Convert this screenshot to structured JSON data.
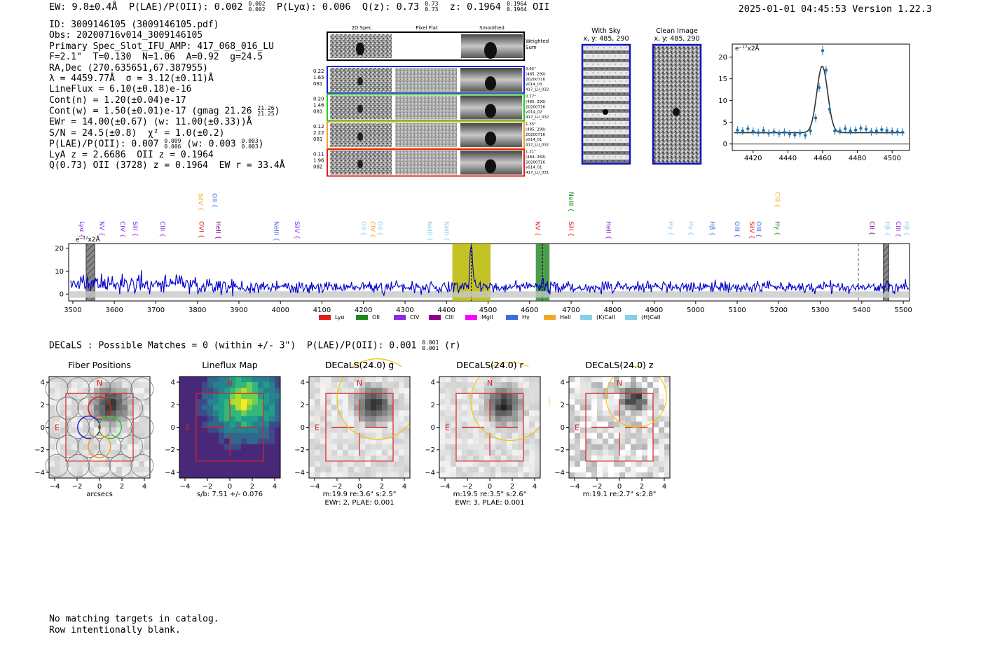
{
  "header": {
    "ew": "EW: 9.8±0.4Å",
    "plae_label": "P(LAE)/P(OII): 0.002",
    "plae_hi": "0.002",
    "plae_lo": "0.002",
    "plya": "P(Lyα): 0.006",
    "qz_label": "Q(z): 0.73",
    "qz_hi": "0.73",
    "qz_lo": "0.73",
    "z_label": "z: 0.1964",
    "z_hi": "0.1964",
    "z_lo": "0.1964",
    "z_line": "OII",
    "datetime": "2025-01-01 04:45:53",
    "version": "Version 1.22.3"
  },
  "info": {
    "id": "ID: 3009146105 (3009146105.pdf)",
    "obs": "Obs: 20200716v014_3009146105",
    "slot": "Primary Spec_Slot_IFU_AMP: 417_068_016_LU",
    "params": "F=2.1\"  T=0.130  N=1.06  A=0.92  g=24.5",
    "radec": "RA,Dec (270.635651,67.387955)",
    "lambda": "λ = 4459.77Å  σ = 3.12(±0.11)Å",
    "lineflux": "LineFlux = 6.10(±0.18)e-16",
    "contn": "Cont(n) = 1.20(±0.04)e-17",
    "contw": "Cont(w) = 1.50(±0.01)e-17 (gmag 21.26",
    "contw_hi": "21.26",
    "contw_lo": "21.25",
    "contw_end": ")",
    "ewr": "EWr = 14.00(±0.67) (w: 11.00(±0.33))Å",
    "sn": "S/N = 24.5(±0.8)  χ² = 1.0(±0.2)",
    "plae": "P(LAE)/P(OII): 0.007",
    "plae_hi": "0.009",
    "plae_lo": "0.006",
    "plae_w": "(w: 0.003",
    "plae_w_hi": "0.003",
    "plae_w_lo": "0.003",
    "plae_end": ")",
    "lya": "LyA z = 2.6686  OII z = 0.1964",
    "q": "Q(0.73) OII (3728) z = 0.1964  EW r = 33.4Å"
  },
  "cutouts": {
    "headers": [
      "2D Spec",
      "Pixel Flat",
      "Smoothed"
    ],
    "weighted": [
      "Weighted",
      "Sum"
    ],
    "rows": [
      {
        "left": [
          "0.22",
          "1.65",
          "081"
        ],
        "right": [
          "0.65\"",
          "(485, 290)",
          "20200716",
          "v014_03",
          "417_LU_032"
        ],
        "color": "#1f1fd0"
      },
      {
        "left": [
          "0.20",
          "1.46",
          "081"
        ],
        "right": [
          "0.77\"",
          "(485, 290)",
          "20200716",
          "v014_02",
          "417_LU_032"
        ],
        "color": "#22cc22"
      },
      {
        "left": [
          "0.12",
          "2.22",
          "081"
        ],
        "right": [
          "1.35\"",
          "(485, 290)",
          "20200716",
          "v014_01",
          "417_LU_032"
        ],
        "color": "#f0a030"
      },
      {
        "left": [
          "0.11",
          "1.96",
          "082"
        ],
        "right": [
          "1.21\"",
          "(484, 282)",
          "20200716",
          "v014_01",
          "417_LU_031"
        ],
        "color": "#e02020"
      }
    ]
  },
  "sky": {
    "with_sky_title": "With Sky",
    "with_sky_xy": "x, y: 485, 290",
    "clean_title": "Clean Image",
    "clean_xy": "x, y: 485, 290"
  },
  "colors": {
    "Lya": "#e41a1c",
    "OII": "#1a8a1a",
    "CIV": "#8a2be2",
    "CIII": "#8b008b",
    "MgII": "#ff00ff",
    "Hy": "#4169e1",
    "HeII": "#f5a623",
    "KCaII": "#87ceeb",
    "HCaII": "#87ceeb",
    "spectrum": "#0000cc",
    "fit": "#333333",
    "points": "#1f77b4",
    "oii_band": "#2e8b2e",
    "lya_band": "#b8b800"
  },
  "chart_data": [
    {
      "type": "scatter",
      "id": "line-fit",
      "units_label": "e⁻¹⁷x2Å",
      "xlim": [
        4408,
        4510
      ],
      "ylim": [
        -1.5,
        23
      ],
      "xticks": [
        4420,
        4440,
        4460,
        4480,
        4500
      ],
      "yticks": [
        0,
        5,
        10,
        15,
        20
      ],
      "points": {
        "x": [
          4411,
          4414,
          4417,
          4420,
          4423,
          4426,
          4429,
          4432,
          4435,
          4438,
          4441,
          4444,
          4447,
          4450,
          4453,
          4456,
          4458,
          4460,
          4462,
          4464,
          4467,
          4470,
          4473,
          4476,
          4479,
          4482,
          4485,
          4488,
          4491,
          4494,
          4497,
          4500,
          4503,
          4506
        ],
        "y": [
          3.2,
          3.0,
          3.5,
          2.9,
          2.6,
          3.1,
          2.5,
          2.8,
          2.4,
          2.7,
          2.3,
          2.1,
          2.5,
          2.0,
          3.0,
          6.0,
          13.0,
          21.5,
          17.0,
          8.0,
          3.0,
          3.0,
          3.5,
          3.0,
          3.2,
          3.6,
          3.4,
          2.8,
          3.0,
          3.3,
          3.1,
          2.9,
          2.8,
          2.7
        ],
        "err": [
          0.9,
          0.9,
          0.9,
          0.9,
          0.9,
          0.9,
          0.9,
          0.9,
          0.9,
          0.9,
          0.9,
          0.9,
          0.9,
          0.9,
          0.9,
          1.0,
          1.0,
          1.1,
          1.0,
          1.0,
          0.9,
          0.9,
          0.9,
          0.9,
          0.9,
          0.9,
          0.9,
          0.9,
          0.9,
          0.9,
          0.9,
          0.9,
          0.9,
          0.9
        ]
      },
      "fit": {
        "center": 4459.77,
        "sigma": 3.12,
        "amplitude": 15.3,
        "continuum": 2.6
      }
    },
    {
      "type": "line",
      "id": "full-spectrum",
      "units_label": "e⁻¹⁷x2Å",
      "xlim": [
        3490,
        5515
      ],
      "ylim": [
        -3,
        22
      ],
      "xticks": [
        3500,
        3600,
        3700,
        3800,
        3900,
        4000,
        4100,
        4200,
        4300,
        4400,
        4500,
        4600,
        4700,
        4800,
        4900,
        5000,
        5100,
        5200,
        5300,
        5400,
        5500
      ],
      "yticks": [
        0,
        10,
        20
      ],
      "continuum_level": 3.0,
      "peaks": [
        {
          "x": 4459.77,
          "sigma": 3.12,
          "amp": 18.5
        },
        {
          "x": 4630,
          "sigma": 4.0,
          "amp": 3.0
        }
      ],
      "bands": [
        {
          "x0": 4414,
          "x1": 4506,
          "color_key": "lya_band",
          "center": 4459.77
        },
        {
          "x0": 4615,
          "x1": 4648,
          "color_key": "oii_band",
          "center": 4631
        }
      ],
      "hatched": [
        {
          "x0": 3532,
          "x1": 3553
        },
        {
          "x0": 5452,
          "x1": 5465
        }
      ],
      "dashed_lines": [
        5392
      ],
      "line_labels": [
        {
          "label": "Lyα",
          "x": 3512,
          "row": 0,
          "color": "#8a2be2"
        },
        {
          "label": "NV",
          "x": 3560,
          "row": 0,
          "color": "#8a2be2"
        },
        {
          "label": "CIV",
          "x": 3610,
          "row": 0,
          "color": "#8a2be2"
        },
        {
          "label": "SiII",
          "x": 3640,
          "row": 0,
          "color": "#8a2be2"
        },
        {
          "label": "CIII",
          "x": 3706,
          "row": 0,
          "color": "#8a2be2"
        },
        {
          "label": "OVI",
          "x": 3800,
          "row": 0,
          "color": "#e41a1c"
        },
        {
          "label": "HeII",
          "x": 3840,
          "row": 0,
          "color": "#8b008b"
        },
        {
          "label": "SiIV",
          "x": 3798,
          "row": 1,
          "color": "#f5a623"
        },
        {
          "label": "OII",
          "x": 3832,
          "row": 1,
          "color": "#4169e1"
        },
        {
          "label": "NeIII",
          "x": 3980,
          "row": 0,
          "color": "#4169e1"
        },
        {
          "label": "SiIV",
          "x": 4030,
          "row": 0,
          "color": "#8a2be2"
        },
        {
          "label": "OII",
          "x": 4190,
          "row": 0,
          "color": "#87ceeb"
        },
        {
          "label": "CIV",
          "x": 4212,
          "row": 0,
          "color": "#f5a623"
        },
        {
          "label": "OII",
          "x": 4230,
          "row": 0,
          "color": "#87ceeb"
        },
        {
          "label": "NeIII",
          "x": 4350,
          "row": 0,
          "color": "#87ceeb"
        },
        {
          "label": "NeIII",
          "x": 4390,
          "row": 0,
          "color": "#87ceeb"
        },
        {
          "label": "NV",
          "x": 4610,
          "row": 0,
          "color": "#e41a1c"
        },
        {
          "label": "SiII",
          "x": 4690,
          "row": 0,
          "color": "#e41a1c"
        },
        {
          "label": "NeIII",
          "x": 4690,
          "row": 2,
          "color": "#1a8a1a"
        },
        {
          "label": "HeII",
          "x": 4780,
          "row": 0,
          "color": "#8a2be2"
        },
        {
          "label": "Hγ",
          "x": 4930,
          "row": 0,
          "color": "#87ceeb"
        },
        {
          "label": "Hγ",
          "x": 4978,
          "row": 0,
          "color": "#87ceeb"
        },
        {
          "label": "Hβ",
          "x": 5030,
          "row": 0,
          "color": "#4169e1"
        },
        {
          "label": "OIII",
          "x": 5090,
          "row": 0,
          "color": "#4169e1"
        },
        {
          "label": "SiIV",
          "x": 5125,
          "row": 0,
          "color": "#e41a1c"
        },
        {
          "label": "OIII",
          "x": 5142,
          "row": 0,
          "color": "#4169e1"
        },
        {
          "label": "Hγ",
          "x": 5187,
          "row": 0,
          "color": "#1a8a1a"
        },
        {
          "label": "CIII",
          "x": 5187,
          "row": 2,
          "color": "#f5a623"
        },
        {
          "label": "CII",
          "x": 5415,
          "row": 0,
          "color": "#8b008b"
        },
        {
          "label": "Hβ",
          "x": 5452,
          "row": 0,
          "color": "#87ceeb"
        },
        {
          "label": "CIII",
          "x": 5478,
          "row": 0,
          "color": "#8a2be2"
        },
        {
          "label": "Hβ",
          "x": 5498,
          "row": 0,
          "color": "#87ceeb"
        }
      ],
      "legend": [
        {
          "label": "Lyα",
          "color": "#e41a1c"
        },
        {
          "label": "OII",
          "color": "#1a8a1a"
        },
        {
          "label": "CIV",
          "color": "#8a2be2"
        },
        {
          "label": "CIII",
          "color": "#8b008b"
        },
        {
          "label": "MgII",
          "color": "#ff00ff"
        },
        {
          "label": "Hγ",
          "color": "#4169e1"
        },
        {
          "label": "HeII",
          "color": "#f5a623"
        },
        {
          "label": "(K)CaII",
          "color": "#87ceeb"
        },
        {
          "label": "(H)CaII",
          "color": "#87ceeb"
        }
      ]
    }
  ],
  "decals": {
    "title": "DECaLS : Possible Matches = 0 (within +/- 3\")  P(LAE)/P(OII): 0.001",
    "title_hi": "0.001",
    "title_lo": "0.001",
    "title_end": "(r)",
    "axis_ticks": [
      "4",
      "2",
      "0",
      "−2",
      "−4"
    ],
    "xticks": [
      "−4",
      "−2",
      "0",
      "2",
      "4"
    ],
    "north": "N",
    "east": "E",
    "panels": [
      {
        "title": "Fiber Positions",
        "cap1": "arcsecs",
        "cap2": ""
      },
      {
        "title": "Lineflux Map",
        "cap1": "s/b: 7.51 +/- 0.076",
        "cap2": ""
      },
      {
        "title": "DECaLS(24.0) g",
        "cap1": "m:19.9  re:3.6\"  s:2.5\"",
        "cap2": "EWr: 2, PLAE: 0.001"
      },
      {
        "title": "DECaLS(24.0) r",
        "cap1": "m:19.5  re:3.5\"  s:2.6\"",
        "cap2": "EWr: 3, PLAE: 0.001"
      },
      {
        "title": "DECaLS(24.0) z",
        "cap1": "m:19.1  re:2.7\"  s:2.8\"",
        "cap2": ""
      }
    ]
  },
  "footer": {
    "line1": "No matching targets in catalog.",
    "line2": "Row intentionally blank."
  }
}
